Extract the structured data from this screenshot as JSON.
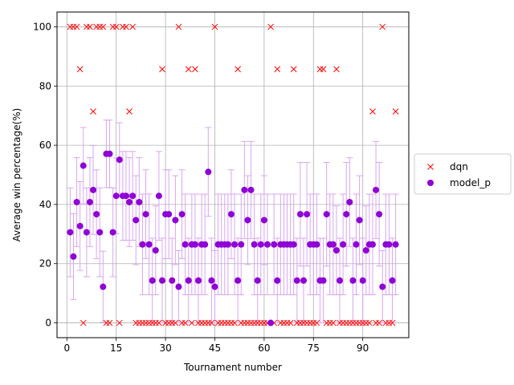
{
  "chart_data": {
    "type": "scatter",
    "title": "",
    "xlabel": "Tournament number",
    "ylabel": "Average win percentage(%)",
    "xlim": [
      -3,
      104
    ],
    "ylim": [
      -5,
      105
    ],
    "xticks": [
      0,
      15,
      30,
      45,
      60,
      75,
      90
    ],
    "yticks": [
      0,
      20,
      40,
      60,
      80,
      100
    ],
    "grid": true,
    "legend_placement": "right",
    "series": [
      {
        "name": "dqn",
        "marker": "x",
        "color": "#ff0000",
        "x": [
          1,
          2,
          3,
          4,
          5,
          6,
          7,
          8,
          9,
          10,
          11,
          12,
          13,
          14,
          15,
          16,
          17,
          18,
          19,
          20,
          21,
          22,
          23,
          24,
          25,
          26,
          27,
          28,
          29,
          30,
          31,
          32,
          33,
          34,
          35,
          36,
          37,
          38,
          39,
          40,
          41,
          42,
          43,
          44,
          45,
          46,
          47,
          48,
          49,
          50,
          51,
          52,
          53,
          54,
          55,
          56,
          57,
          58,
          59,
          60,
          61,
          62,
          63,
          64,
          65,
          66,
          67,
          68,
          69,
          70,
          71,
          72,
          73,
          74,
          75,
          76,
          77,
          78,
          79,
          80,
          81,
          82,
          83,
          84,
          85,
          86,
          87,
          88,
          89,
          90,
          91,
          92,
          93,
          94,
          95,
          96,
          97,
          98,
          99,
          100
        ],
        "y": [
          100,
          100,
          100,
          85.7,
          0,
          100,
          100,
          71.4,
          100,
          100,
          100,
          0,
          0,
          100,
          100,
          0,
          100,
          100,
          71.4,
          100,
          0,
          0,
          0,
          0,
          0,
          0,
          0,
          0,
          85.7,
          0,
          0,
          0,
          0,
          100,
          0,
          0,
          85.7,
          0,
          85.7,
          0,
          0,
          0,
          0,
          0,
          100,
          0,
          0,
          0,
          0,
          0,
          0,
          85.7,
          0,
          0,
          0,
          0,
          0,
          0,
          0,
          0,
          0,
          100,
          0,
          85.7,
          0,
          0,
          0,
          0,
          85.7,
          0,
          0,
          0,
          0,
          0,
          0,
          0,
          85.7,
          85.7,
          0,
          0,
          0,
          85.7,
          0,
          0,
          0,
          0,
          0,
          0,
          0,
          0,
          0,
          0,
          71.4,
          0,
          0,
          100,
          0,
          0,
          0,
          71.4
        ]
      },
      {
        "name": "model_p",
        "marker": "o",
        "color": "#8f00d6",
        "errorbar_color": "#d9a6f2",
        "x": [
          1,
          2,
          3,
          4,
          5,
          6,
          7,
          8,
          9,
          10,
          11,
          12,
          13,
          14,
          15,
          16,
          17,
          18,
          19,
          20,
          21,
          22,
          23,
          24,
          25,
          26,
          27,
          28,
          29,
          30,
          31,
          32,
          33,
          34,
          35,
          36,
          37,
          38,
          39,
          40,
          41,
          42,
          43,
          44,
          45,
          46,
          47,
          48,
          49,
          50,
          51,
          52,
          53,
          54,
          55,
          56,
          57,
          58,
          59,
          60,
          61,
          62,
          63,
          64,
          65,
          66,
          67,
          68,
          69,
          70,
          71,
          72,
          73,
          74,
          75,
          76,
          77,
          78,
          79,
          80,
          81,
          82,
          83,
          84,
          85,
          86,
          87,
          88,
          89,
          90,
          91,
          92,
          93,
          94,
          95,
          96,
          97,
          98,
          99,
          100
        ],
        "y": [
          30.6,
          22.4,
          40.8,
          32.7,
          53.1,
          30.6,
          40.8,
          44.9,
          36.7,
          30.6,
          12.2,
          57.1,
          57.1,
          30.6,
          42.9,
          55.1,
          42.9,
          42.9,
          40.8,
          42.9,
          34.7,
          40.8,
          26.5,
          36.7,
          26.5,
          14.3,
          24.5,
          42.9,
          14.3,
          36.7,
          36.7,
          14.3,
          34.7,
          12.2,
          36.7,
          26.5,
          14.3,
          26.5,
          26.5,
          14.3,
          26.5,
          26.5,
          51,
          14.3,
          12.2,
          26.5,
          26.5,
          26.5,
          26.5,
          36.7,
          26.5,
          14.3,
          26.5,
          44.9,
          34.7,
          44.9,
          26.5,
          14.3,
          26.5,
          34.7,
          26.5,
          0,
          26.5,
          14.3,
          26.5,
          26.5,
          26.5,
          26.5,
          26.5,
          14.3,
          36.7,
          14.3,
          36.7,
          26.5,
          26.5,
          26.5,
          14.3,
          14.3,
          36.7,
          26.5,
          26.5,
          24.5,
          14.3,
          26.5,
          36.7,
          40.8,
          14.3,
          26.5,
          34.7,
          14.3,
          24.5,
          26.5,
          26.5,
          44.9,
          36.7,
          12.2,
          26.5,
          26.5,
          14.3,
          26.5
        ],
        "err": [
          15,
          14.5,
          15,
          15,
          12.9,
          15,
          15,
          15,
          15,
          15,
          12,
          11.4,
          11.4,
          15,
          12.8,
          12.5,
          15,
          15,
          15,
          15,
          15,
          15,
          17,
          15,
          17,
          14.3,
          15,
          15,
          14.3,
          15,
          15,
          14.3,
          15,
          12.2,
          15,
          17,
          14.3,
          17,
          17,
          14.3,
          17,
          17,
          15,
          14.3,
          12.2,
          17,
          17,
          17,
          17,
          15,
          17,
          14.3,
          17,
          16.4,
          15,
          16.4,
          17,
          14.3,
          17,
          15,
          17,
          0,
          17,
          14.3,
          17,
          17,
          17,
          17,
          17,
          14.3,
          17.5,
          14.3,
          17.5,
          17,
          17,
          17,
          14.3,
          14.3,
          17.5,
          17,
          17,
          15,
          14.3,
          17,
          17.5,
          15,
          14.3,
          17,
          15,
          14.3,
          15,
          17,
          17,
          16.4,
          17.5,
          12.2,
          17,
          17,
          14.3,
          17
        ]
      }
    ]
  }
}
